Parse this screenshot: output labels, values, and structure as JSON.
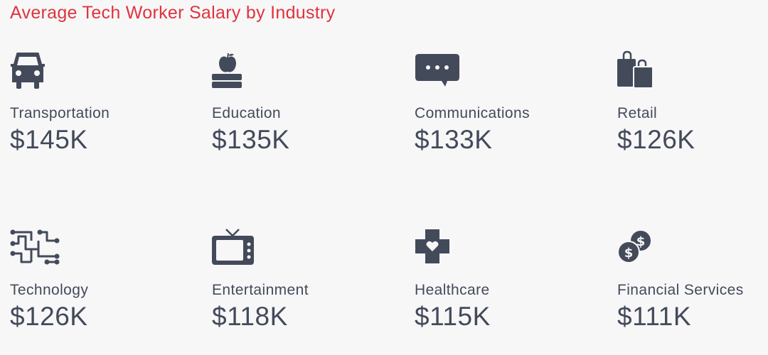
{
  "title": "Average Tech Worker Salary by Industry",
  "colors": {
    "title": "#e0333d",
    "icon": "#434a5a",
    "text": "#434a5a",
    "background": "#f7f7f8"
  },
  "items": [
    {
      "icon": "car-icon",
      "label": "Transportation",
      "salary": "$145K"
    },
    {
      "icon": "apple-books-icon",
      "label": "Education",
      "salary": "$135K"
    },
    {
      "icon": "chat-bubble-icon",
      "label": "Communications",
      "salary": "$133K"
    },
    {
      "icon": "shopping-bags-icon",
      "label": "Retail",
      "salary": "$126K"
    },
    {
      "icon": "circuit-icon",
      "label": "Technology",
      "salary": "$126K"
    },
    {
      "icon": "television-icon",
      "label": "Entertainment",
      "salary": "$118K"
    },
    {
      "icon": "medical-cross-icon",
      "label": "Healthcare",
      "salary": "$115K"
    },
    {
      "icon": "coins-icon",
      "label": "Financial Services",
      "salary": "$111K"
    }
  ],
  "chart_data": {
    "type": "table",
    "title": "Average Tech Worker Salary by Industry",
    "categories": [
      "Transportation",
      "Education",
      "Communications",
      "Retail",
      "Technology",
      "Entertainment",
      "Healthcare",
      "Financial Services"
    ],
    "values": [
      145,
      135,
      133,
      126,
      126,
      118,
      115,
      111
    ],
    "unit": "$K"
  }
}
